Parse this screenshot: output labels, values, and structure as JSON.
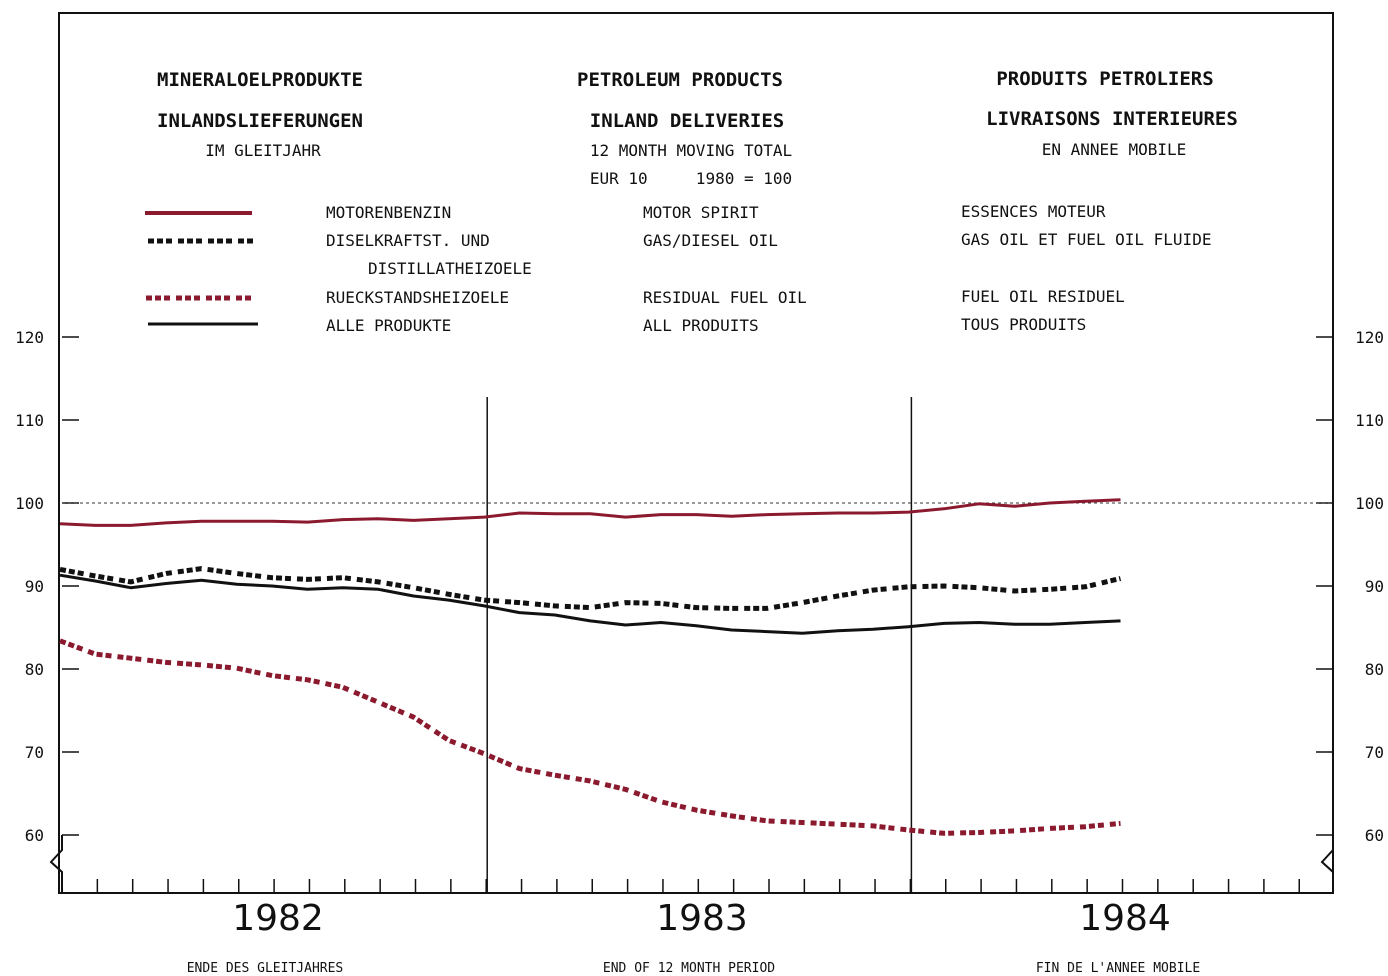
{
  "headers": {
    "de": {
      "title": "MINERALOELPRODUKTE",
      "subtitle": "INLANDSLIEFERUNGEN",
      "basis": "IM GLEITJAHR"
    },
    "en": {
      "title": "PETROLEUM PRODUCTS",
      "subtitle": "INLAND DELIVERIES",
      "basis": "12 MONTH MOVING TOTAL",
      "index": "EUR 10     1980 = 100"
    },
    "fr": {
      "title": "PRODUITS PETROLIERS",
      "subtitle": "LIVRAISONS INTERIEURES",
      "basis": "EN ANNEE MOBILE"
    }
  },
  "legend": [
    {
      "de": "MOTORENBENZIN",
      "de2": "",
      "en": "MOTOR SPIRIT",
      "fr": "ESSENCES MOTEUR",
      "color": "#8b1a2e",
      "style": "solid"
    },
    {
      "de": "DISELKRAFTST. UND",
      "de2": "DISTILLATHEIZOELE",
      "en": "GAS/DIESEL OIL",
      "fr": "GAS OIL ET FUEL OIL FLUIDE",
      "color": "#111111",
      "style": "dotted"
    },
    {
      "de": "RUECKSTANDSHEIZOELE",
      "de2": "",
      "en": "RESIDUAL FUEL OIL",
      "fr": "FUEL OIL RESIDUEL",
      "color": "#8b1a2e",
      "style": "dotted"
    },
    {
      "de": "ALLE PRODUKTE",
      "de2": "",
      "en": "ALL PRODUITS",
      "fr": "TOUS PRODUITS",
      "color": "#111111",
      "style": "solid"
    }
  ],
  "footer": {
    "de": "ENDE DES GLEITJAHRES",
    "en": "END OF 12 MONTH PERIOD",
    "fr": "FIN DE L'ANNEE MOBILE"
  },
  "chart_data": {
    "type": "line",
    "x_unit": "month",
    "year_labels": [
      "1982",
      "1983",
      "1984"
    ],
    "ylim": [
      60,
      120
    ],
    "yticks": [
      "60",
      "70",
      "80",
      "90",
      "100",
      "110",
      "120"
    ],
    "reference_line": 100,
    "x_months": [
      1,
      2,
      3,
      4,
      5,
      6,
      7,
      8,
      9,
      10,
      11,
      12,
      13,
      14,
      15,
      16,
      17,
      18,
      19,
      20,
      21,
      22,
      23,
      24,
      25,
      26,
      27,
      28,
      29,
      30,
      31
    ],
    "series": [
      {
        "name": "MOTORENBENZIN",
        "color": "#8b1a2e",
        "dash": "solid",
        "values": [
          97.5,
          97.3,
          97.3,
          97.6,
          97.8,
          97.8,
          97.8,
          97.7,
          98.0,
          98.1,
          97.9,
          98.1,
          98.3,
          98.8,
          98.7,
          98.7,
          98.3,
          98.6,
          98.6,
          98.4,
          98.6,
          98.7,
          98.8,
          98.8,
          98.9,
          99.3,
          99.9,
          99.6,
          100.0,
          100.2,
          100.4
        ]
      },
      {
        "name": "DISELKRAFTST. UND DISTILLATHEIZOELE",
        "color": "#111111",
        "dash": "dotted",
        "values": [
          92.0,
          91.2,
          90.5,
          91.5,
          92.1,
          91.5,
          91.0,
          90.8,
          91.0,
          90.5,
          89.8,
          89.0,
          88.3,
          88.0,
          87.6,
          87.4,
          88.0,
          87.9,
          87.4,
          87.3,
          87.3,
          88.0,
          88.8,
          89.5,
          89.9,
          90.0,
          89.8,
          89.4,
          89.6,
          89.9,
          90.9
        ]
      },
      {
        "name": "RUECKSTANDSHEIZOELE",
        "color": "#8b1a2e",
        "dash": "dotted",
        "values": [
          83.4,
          81.8,
          81.3,
          80.8,
          80.5,
          80.1,
          79.2,
          78.7,
          77.8,
          76.0,
          74.2,
          71.4,
          69.8,
          68.0,
          67.2,
          66.5,
          65.5,
          64.0,
          63.0,
          62.3,
          61.7,
          61.5,
          61.3,
          61.1,
          60.6,
          60.2,
          60.3,
          60.5,
          60.8,
          61.0,
          61.4
        ]
      },
      {
        "name": "ALLE PRODUKTE",
        "color": "#111111",
        "dash": "solid",
        "values": [
          91.3,
          90.6,
          89.8,
          90.3,
          90.7,
          90.2,
          90.0,
          89.6,
          89.8,
          89.6,
          88.8,
          88.3,
          87.6,
          86.8,
          86.5,
          85.8,
          85.3,
          85.6,
          85.2,
          84.7,
          84.5,
          84.3,
          84.6,
          84.8,
          85.1,
          85.5,
          85.6,
          85.4,
          85.4,
          85.6,
          85.8
        ]
      }
    ]
  }
}
